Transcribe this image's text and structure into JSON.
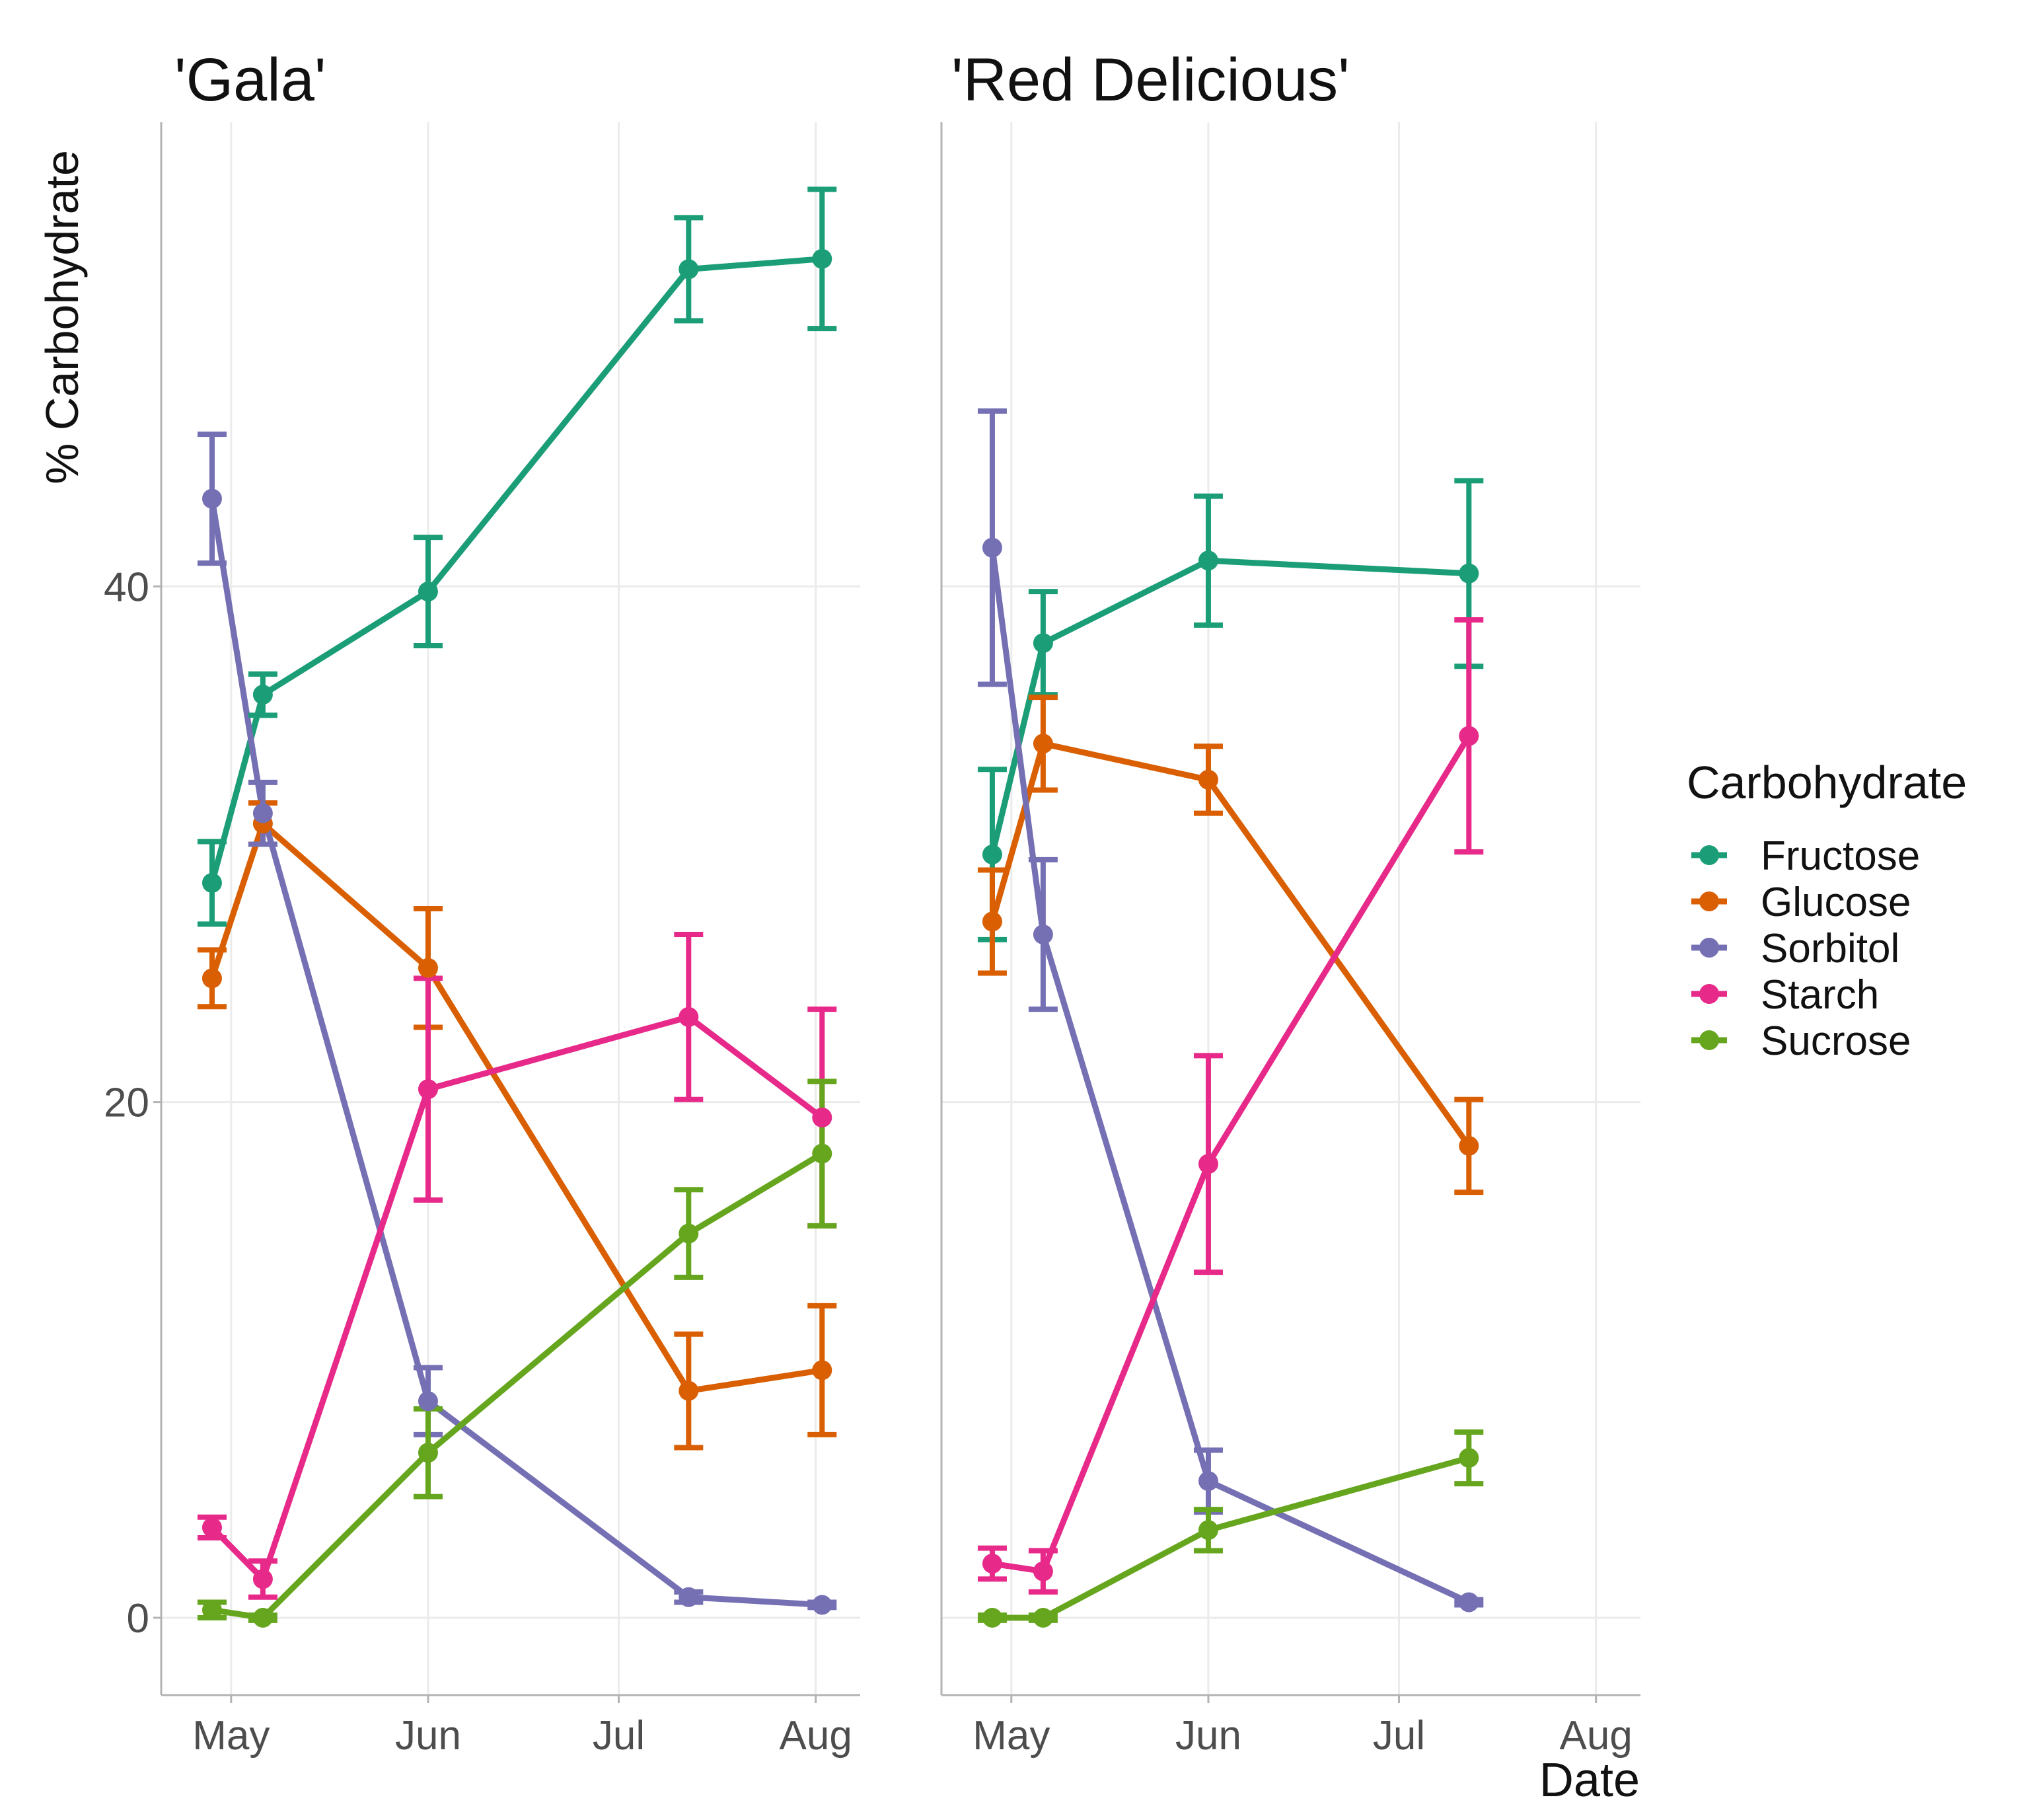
{
  "chart_data": {
    "type": "line",
    "ylabel": "% Carbohydrate",
    "xlabel": "Date",
    "ylim": [
      -3,
      58
    ],
    "yticks": [
      0,
      20,
      40
    ],
    "month_ticks": [
      "May",
      "Jun",
      "Jul",
      "Aug"
    ],
    "x_unit": "day-of-year",
    "month_positions": [
      121,
      152,
      182,
      213
    ],
    "xlim": [
      110,
      220
    ],
    "legend": {
      "title": "Carbohydrate",
      "placement": "right",
      "entries": [
        "Fructose",
        "Glucose",
        "Sorbitol",
        "Starch",
        "Sucrose"
      ]
    },
    "colors": {
      "Fructose": "#1b9e77",
      "Glucose": "#d95f02",
      "Sorbitol": "#7570b3",
      "Starch": "#e7298a",
      "Sucrose": "#66a61e"
    },
    "panels": [
      {
        "title": "'Gala'",
        "series": [
          {
            "name": "Fructose",
            "x": [
              118,
              126,
              152,
              193,
              214
            ],
            "values": [
              28.5,
              35.8,
              39.8,
              52.3,
              52.7
            ],
            "err": [
              1.6,
              0.8,
              2.1,
              2.0,
              2.7
            ]
          },
          {
            "name": "Glucose",
            "x": [
              118,
              126,
              152,
              193,
              214
            ],
            "values": [
              24.8,
              30.8,
              25.2,
              8.8,
              9.6
            ],
            "err": [
              1.1,
              0.8,
              2.3,
              2.2,
              2.5
            ]
          },
          {
            "name": "Sorbitol",
            "x": [
              118,
              126,
              152,
              193,
              214
            ],
            "values": [
              43.4,
              31.2,
              8.4,
              0.8,
              0.5
            ],
            "err": [
              2.5,
              1.2,
              1.3,
              0.2,
              0.1
            ]
          },
          {
            "name": "Starch",
            "x": [
              118,
              126,
              152,
              193,
              214
            ],
            "values": [
              3.5,
              1.5,
              20.5,
              23.3,
              19.4
            ],
            "err": [
              0.4,
              0.7,
              4.3,
              3.2,
              4.2
            ]
          },
          {
            "name": "Sucrose",
            "x": [
              118,
              126,
              152,
              193,
              214
            ],
            "values": [
              0.3,
              0.0,
              6.4,
              14.9,
              18.0
            ],
            "err": [
              0.3,
              0.1,
              1.7,
              1.7,
              2.8
            ]
          }
        ]
      },
      {
        "title": "'Red Delicious'",
        "series": [
          {
            "name": "Fructose",
            "x": [
              118,
              126,
              152,
              193
            ],
            "values": [
              29.6,
              37.8,
              41.0,
              40.5
            ],
            "err": [
              3.3,
              2.0,
              2.5,
              3.6
            ]
          },
          {
            "name": "Glucose",
            "x": [
              118,
              126,
              152,
              193
            ],
            "values": [
              27.0,
              33.9,
              32.5,
              18.3
            ],
            "err": [
              2.0,
              1.8,
              1.3,
              1.8
            ]
          },
          {
            "name": "Sorbitol",
            "x": [
              118,
              126,
              152,
              193
            ],
            "values": [
              41.5,
              26.5,
              5.3,
              0.6
            ],
            "err": [
              5.3,
              2.9,
              1.2,
              0.1
            ]
          },
          {
            "name": "Starch",
            "x": [
              118,
              126,
              152,
              193
            ],
            "values": [
              2.1,
              1.8,
              17.6,
              34.2
            ],
            "err": [
              0.6,
              0.8,
              4.2,
              4.5
            ]
          },
          {
            "name": "Sucrose",
            "x": [
              118,
              126,
              152,
              193
            ],
            "values": [
              0.0,
              0.0,
              3.4,
              6.2
            ],
            "err": [
              0.1,
              0.1,
              0.8,
              1.0
            ]
          }
        ]
      }
    ]
  }
}
